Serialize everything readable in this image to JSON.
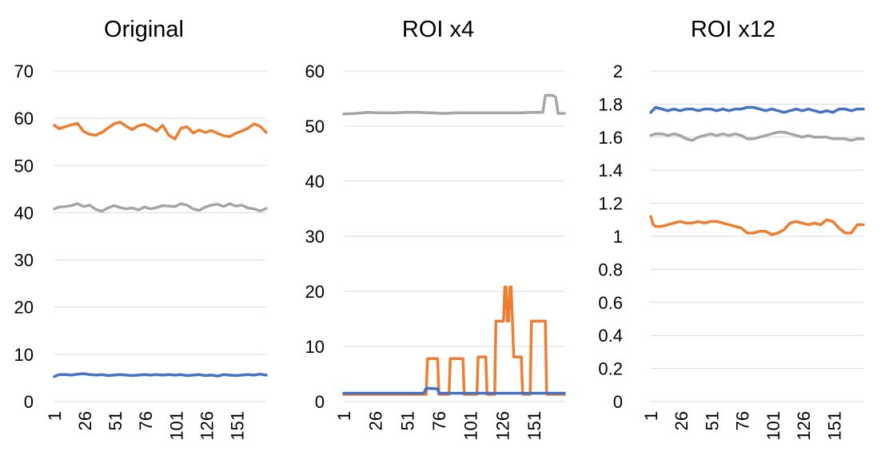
{
  "colors": {
    "blue": "#4472c4",
    "orange": "#ed7d31",
    "gray": "#a5a5a5",
    "grid": "#d9d9d9"
  },
  "chart_data": [
    {
      "type": "line",
      "title": "Original",
      "ylim": [
        0,
        70
      ],
      "yticks": [
        "0",
        "10",
        "20",
        "30",
        "40",
        "50",
        "60",
        "70"
      ],
      "xlim": [
        1,
        175
      ],
      "xticks": [
        "1",
        "26",
        "51",
        "76",
        "101",
        "126",
        "151"
      ],
      "grid": true,
      "series": [
        {
          "color": "#ed7d31",
          "x": [
            1,
            5,
            10,
            15,
            20,
            25,
            30,
            35,
            40,
            45,
            50,
            55,
            60,
            65,
            70,
            75,
            80,
            85,
            90,
            95,
            100,
            105,
            110,
            115,
            120,
            125,
            130,
            135,
            140,
            145,
            150,
            155,
            160,
            165,
            170,
            175
          ],
          "values": [
            58.5,
            57.8,
            58.2,
            58.6,
            58.9,
            57.2,
            56.6,
            56.4,
            57.0,
            57.9,
            58.8,
            59.2,
            58.3,
            57.6,
            58.4,
            58.7,
            58.1,
            57.3,
            58.5,
            56.4,
            55.6,
            57.9,
            58.2,
            56.9,
            57.5,
            57.0,
            57.4,
            56.8,
            56.3,
            56.1,
            56.8,
            57.3,
            57.9,
            58.8,
            58.3,
            57.0
          ]
        },
        {
          "color": "#a5a5a5",
          "x": [
            1,
            5,
            10,
            15,
            20,
            25,
            30,
            35,
            40,
            45,
            50,
            55,
            60,
            65,
            70,
            75,
            80,
            85,
            90,
            95,
            100,
            105,
            110,
            115,
            120,
            125,
            130,
            135,
            140,
            145,
            150,
            155,
            160,
            165,
            170,
            175
          ],
          "values": [
            40.8,
            41.2,
            41.3,
            41.5,
            41.9,
            41.3,
            41.6,
            40.7,
            40.3,
            41.0,
            41.5,
            41.1,
            40.8,
            41.0,
            40.6,
            41.2,
            40.8,
            41.1,
            41.5,
            41.4,
            41.3,
            41.9,
            41.6,
            40.8,
            40.5,
            41.2,
            41.6,
            41.8,
            41.3,
            41.9,
            41.4,
            41.6,
            41.0,
            40.8,
            40.4,
            40.9
          ]
        },
        {
          "color": "#4472c4",
          "x": [
            1,
            5,
            10,
            15,
            20,
            25,
            30,
            35,
            40,
            45,
            50,
            55,
            60,
            65,
            70,
            75,
            80,
            85,
            90,
            95,
            100,
            105,
            110,
            115,
            120,
            125,
            130,
            135,
            140,
            145,
            150,
            155,
            160,
            165,
            170,
            175
          ],
          "values": [
            5.3,
            5.7,
            5.7,
            5.6,
            5.8,
            5.9,
            5.7,
            5.6,
            5.7,
            5.5,
            5.6,
            5.7,
            5.6,
            5.5,
            5.6,
            5.7,
            5.6,
            5.7,
            5.6,
            5.7,
            5.6,
            5.7,
            5.5,
            5.6,
            5.7,
            5.5,
            5.6,
            5.4,
            5.7,
            5.6,
            5.5,
            5.6,
            5.7,
            5.6,
            5.8,
            5.6
          ]
        }
      ]
    },
    {
      "type": "line",
      "title": "ROI x4",
      "ylim": [
        0,
        60
      ],
      "yticks": [
        "0",
        "10",
        "20",
        "30",
        "40",
        "50",
        "60"
      ],
      "xlim": [
        1,
        175
      ],
      "xticks": [
        "1",
        "26",
        "51",
        "76",
        "101",
        "126",
        "151"
      ],
      "grid": true,
      "series": [
        {
          "color": "#a5a5a5",
          "x": [
            1,
            10,
            20,
            30,
            40,
            50,
            60,
            70,
            80,
            90,
            100,
            110,
            120,
            130,
            140,
            150,
            158,
            160,
            165,
            168,
            170,
            175
          ],
          "values": [
            52.2,
            52.3,
            52.5,
            52.4,
            52.4,
            52.5,
            52.5,
            52.4,
            52.3,
            52.4,
            52.4,
            52.4,
            52.4,
            52.4,
            52.4,
            52.5,
            52.5,
            55.6,
            55.6,
            55.3,
            52.3,
            52.3
          ]
        },
        {
          "color": "#ed7d31",
          "x": [
            1,
            60,
            66,
            67,
            75,
            76,
            84,
            85,
            95,
            96,
            106,
            107,
            113,
            114,
            120,
            121,
            126,
            127,
            128,
            129,
            130,
            131,
            132,
            133,
            134,
            135,
            136,
            141,
            142,
            148,
            149,
            152,
            160,
            161,
            169,
            170,
            175
          ],
          "values": [
            1.3,
            1.3,
            1.3,
            7.8,
            7.8,
            1.3,
            1.3,
            7.8,
            7.8,
            1.3,
            1.3,
            8.1,
            8.1,
            1.3,
            1.3,
            14.6,
            14.6,
            14.6,
            20.8,
            20.8,
            14.6,
            14.6,
            20.8,
            20.8,
            14.6,
            8.1,
            8.1,
            8.1,
            1.3,
            1.3,
            14.6,
            14.6,
            14.6,
            1.3,
            1.3,
            1.3,
            1.3
          ]
        },
        {
          "color": "#4472c4",
          "x": [
            1,
            64,
            66,
            75,
            76,
            175
          ],
          "values": [
            1.5,
            1.5,
            2.4,
            2.3,
            1.5,
            1.5
          ]
        }
      ]
    },
    {
      "type": "line",
      "title": "ROI x12",
      "ylim": [
        0,
        2
      ],
      "yticks": [
        "0",
        "0.2",
        "0.4",
        "0.6",
        "0.8",
        "1",
        "1.2",
        "1.4",
        "1.6",
        "1.8",
        "2"
      ],
      "xlim": [
        1,
        175
      ],
      "xticks": [
        "1",
        "26",
        "51",
        "76",
        "101",
        "126",
        "151"
      ],
      "grid": true,
      "series": [
        {
          "color": "#4472c4",
          "x": [
            1,
            5,
            10,
            15,
            20,
            25,
            30,
            35,
            40,
            45,
            50,
            55,
            60,
            65,
            70,
            75,
            80,
            85,
            90,
            95,
            100,
            105,
            110,
            115,
            120,
            125,
            130,
            135,
            140,
            145,
            150,
            155,
            160,
            165,
            170,
            175
          ],
          "values": [
            1.75,
            1.78,
            1.77,
            1.76,
            1.77,
            1.76,
            1.77,
            1.77,
            1.76,
            1.77,
            1.77,
            1.76,
            1.77,
            1.76,
            1.77,
            1.77,
            1.78,
            1.78,
            1.77,
            1.76,
            1.77,
            1.76,
            1.75,
            1.76,
            1.77,
            1.76,
            1.77,
            1.76,
            1.75,
            1.76,
            1.75,
            1.77,
            1.77,
            1.76,
            1.77,
            1.77
          ]
        },
        {
          "color": "#a5a5a5",
          "x": [
            1,
            5,
            10,
            15,
            20,
            25,
            30,
            35,
            40,
            45,
            50,
            55,
            60,
            65,
            70,
            75,
            80,
            85,
            90,
            95,
            100,
            105,
            110,
            115,
            120,
            125,
            130,
            135,
            140,
            145,
            150,
            155,
            160,
            165,
            170,
            175
          ],
          "values": [
            1.61,
            1.62,
            1.62,
            1.61,
            1.62,
            1.61,
            1.59,
            1.58,
            1.6,
            1.61,
            1.62,
            1.61,
            1.62,
            1.61,
            1.62,
            1.61,
            1.59,
            1.59,
            1.6,
            1.61,
            1.62,
            1.63,
            1.63,
            1.62,
            1.61,
            1.6,
            1.61,
            1.6,
            1.6,
            1.6,
            1.59,
            1.59,
            1.59,
            1.58,
            1.59,
            1.59
          ]
        },
        {
          "color": "#ed7d31",
          "x": [
            1,
            3,
            5,
            10,
            15,
            20,
            25,
            30,
            35,
            40,
            45,
            50,
            55,
            60,
            65,
            70,
            75,
            80,
            85,
            90,
            95,
            100,
            105,
            110,
            115,
            120,
            125,
            130,
            135,
            140,
            145,
            150,
            155,
            160,
            165,
            170,
            175
          ],
          "values": [
            1.12,
            1.07,
            1.06,
            1.06,
            1.07,
            1.08,
            1.09,
            1.08,
            1.08,
            1.09,
            1.08,
            1.09,
            1.09,
            1.08,
            1.07,
            1.06,
            1.05,
            1.02,
            1.02,
            1.03,
            1.03,
            1.01,
            1.02,
            1.04,
            1.08,
            1.09,
            1.08,
            1.07,
            1.08,
            1.07,
            1.1,
            1.09,
            1.05,
            1.02,
            1.02,
            1.07,
            1.07
          ]
        }
      ]
    }
  ]
}
